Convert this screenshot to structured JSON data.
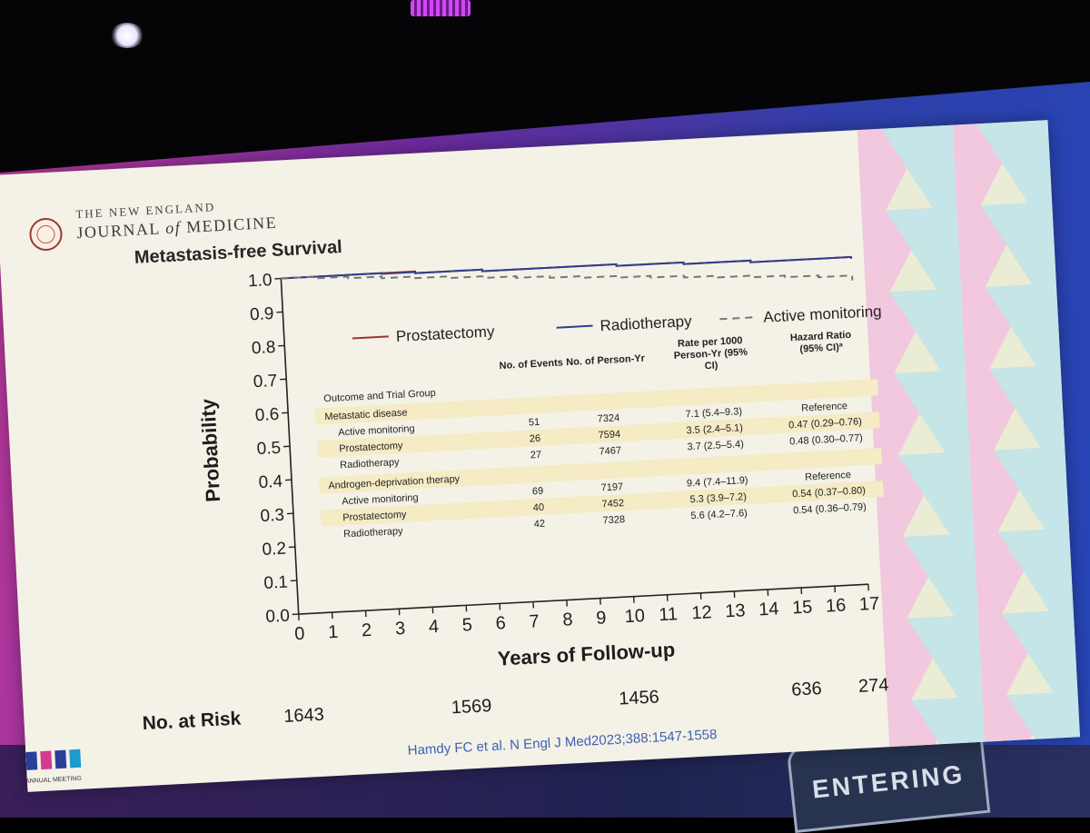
{
  "journal": {
    "prefix": "THE NEW ENGLAND",
    "name_main": "JOURNAL",
    "name_of": "of",
    "name_end": "MEDICINE"
  },
  "citation": "Hamdy FC et al. N Engl J Med2023;388:1547-1558",
  "venue_sign": "ENTERING",
  "meeting_tag": "ANNUAL MEETING",
  "chart_data": {
    "type": "line",
    "title": "Metastasis-free Survival",
    "xlabel": "Years of Follow-up",
    "ylabel": "Probability",
    "xlim": [
      0,
      17
    ],
    "ylim": [
      0.0,
      1.0
    ],
    "x_ticks": [
      0,
      1,
      2,
      3,
      4,
      5,
      6,
      7,
      8,
      9,
      10,
      11,
      12,
      13,
      14,
      15,
      16,
      17
    ],
    "y_ticks": [
      "0.0",
      "0.1",
      "0.2",
      "0.3",
      "0.4",
      "0.5",
      "0.6",
      "0.7",
      "0.8",
      "0.9",
      "1.0"
    ],
    "colors": {
      "Prostatectomy": "#a0342f",
      "Radiotherapy": "#2f3f8f",
      "Active monitoring": "#777777"
    },
    "series": [
      {
        "name": "Prostatectomy",
        "style": "solid",
        "x": [
          0,
          1,
          2,
          3,
          4,
          5,
          6,
          7,
          8,
          9,
          10,
          11,
          12,
          13,
          14,
          15,
          16,
          17
        ],
        "y": [
          1.0,
          1.0,
          1.0,
          1.0,
          0.995,
          0.995,
          0.99,
          0.99,
          0.99,
          0.99,
          0.985,
          0.985,
          0.98,
          0.98,
          0.975,
          0.975,
          0.975,
          0.97
        ]
      },
      {
        "name": "Radiotherapy",
        "style": "solid",
        "x": [
          0,
          1,
          2,
          3,
          4,
          5,
          6,
          7,
          8,
          9,
          10,
          11,
          12,
          13,
          14,
          15,
          16,
          17
        ],
        "y": [
          1.0,
          1.0,
          1.0,
          0.998,
          0.995,
          0.995,
          0.99,
          0.99,
          0.99,
          0.99,
          0.985,
          0.985,
          0.98,
          0.98,
          0.975,
          0.975,
          0.975,
          0.97
        ]
      },
      {
        "name": "Active monitoring",
        "style": "dashed",
        "x": [
          0,
          1,
          2,
          3,
          4,
          5,
          6,
          7,
          8,
          9,
          10,
          11,
          12,
          13,
          14,
          15,
          16,
          17
        ],
        "y": [
          1.0,
          0.995,
          0.99,
          0.985,
          0.98,
          0.975,
          0.97,
          0.965,
          0.96,
          0.955,
          0.95,
          0.945,
          0.94,
          0.935,
          0.93,
          0.925,
          0.92,
          0.905
        ]
      }
    ],
    "legend_position": "top",
    "at_risk": {
      "label": "No. at Risk",
      "values": [
        {
          "x": 0,
          "n": "1643"
        },
        {
          "x": 5,
          "n": "1569"
        },
        {
          "x": 10,
          "n": "1456"
        },
        {
          "x": 15,
          "n": "636"
        },
        {
          "x": 17,
          "n": "274"
        }
      ]
    },
    "table": {
      "headers": [
        "Outcome and Trial Group",
        "No. of Events",
        "No. of Person-Yr",
        "Rate per 1000 Person-Yr (95% CI)",
        "Hazard Ratio (95% CI)ª"
      ],
      "sections": [
        {
          "title": "Metastatic disease",
          "rows": [
            {
              "group": "Active monitoring",
              "events": "51",
              "person_yr": "7324",
              "rate": "7.1 (5.4–9.3)",
              "hr": "Reference"
            },
            {
              "group": "Prostatectomy",
              "events": "26",
              "person_yr": "7594",
              "rate": "3.5 (2.4–5.1)",
              "hr": "0.47 (0.29–0.76)"
            },
            {
              "group": "Radiotherapy",
              "events": "27",
              "person_yr": "7467",
              "rate": "3.7 (2.5–5.4)",
              "hr": "0.48 (0.30–0.77)"
            }
          ]
        },
        {
          "title": "Androgen-deprivation therapy",
          "rows": [
            {
              "group": "Active monitoring",
              "events": "69",
              "person_yr": "7197",
              "rate": "9.4 (7.4–11.9)",
              "hr": "Reference"
            },
            {
              "group": "Prostatectomy",
              "events": "40",
              "person_yr": "7452",
              "rate": "5.3 (3.9–7.2)",
              "hr": "0.54 (0.37–0.80)"
            },
            {
              "group": "Radiotherapy",
              "events": "42",
              "person_yr": "7328",
              "rate": "5.6 (4.2–7.6)",
              "hr": "0.54 (0.36–0.79)"
            }
          ]
        }
      ]
    }
  }
}
